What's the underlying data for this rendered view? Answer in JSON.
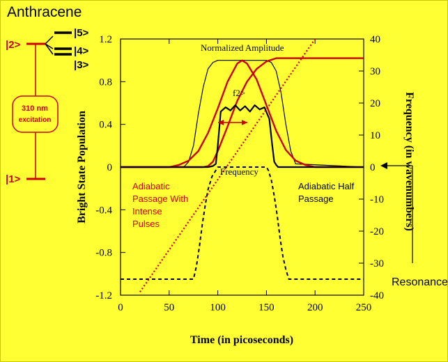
{
  "figure": {
    "title": "Anthracene",
    "levels": {
      "l5": "|5>",
      "l4": "|4>",
      "l3": "|3>",
      "l2": "|2>",
      "l1": "|1>"
    },
    "excitation": [
      "310 nm",
      "excitation"
    ],
    "resonance_label": "Resonance"
  },
  "chart_data": {
    "type": "line",
    "xlabel": "Time (in picoseconds)",
    "ylabel": "Bright State Population",
    "y2label": "Frequency (in wavenumbers)",
    "xlim": [
      0,
      250
    ],
    "ylim": [
      -1.2,
      1.2
    ],
    "y2lim": [
      -40,
      40
    ],
    "xticks": [
      "0",
      "50",
      "100",
      "150",
      "200",
      "250"
    ],
    "yticks": [
      "-1.2",
      "-0.8",
      "-0.4",
      "0",
      "0.4",
      "0.8",
      "1.2"
    ],
    "y2ticks": [
      "-40",
      "-30",
      "-20",
      "-10",
      "0",
      "10",
      "20",
      "30",
      "40"
    ],
    "annotations": {
      "normalized_amplitude": "Normalized Amplitude",
      "frequency": "Frequency",
      "f2": "f2>",
      "adiabatic_intense": [
        "Adiabatic",
        "Passage With",
        "Intense",
        "Pulses"
      ],
      "adiabatic_half": [
        "Adiabatic Half",
        "Passage"
      ]
    },
    "colors": {
      "black": "#000000",
      "red": "#cc0000",
      "background": "#ffff33"
    },
    "series": [
      {
        "style": "black-thin",
        "axis": "left",
        "x": [
          0,
          65,
          70,
          75,
          80,
          85,
          90,
          95,
          100,
          150,
          155,
          160,
          165,
          170,
          175,
          180,
          250
        ],
        "y": [
          0,
          0,
          0.05,
          0.2,
          0.5,
          0.75,
          0.92,
          0.98,
          1.0,
          1.0,
          0.98,
          0.9,
          0.7,
          0.4,
          0.15,
          0.03,
          0
        ]
      },
      {
        "style": "red-solid",
        "axis": "left",
        "x": [
          0,
          50,
          60,
          70,
          80,
          90,
          100,
          110,
          120,
          125,
          130,
          140,
          150,
          160,
          170,
          180,
          190,
          200,
          250
        ],
        "y": [
          0,
          0,
          0.02,
          0.06,
          0.15,
          0.32,
          0.55,
          0.8,
          0.97,
          1.0,
          0.97,
          0.82,
          0.58,
          0.34,
          0.16,
          0.06,
          0.02,
          0,
          0
        ]
      },
      {
        "style": "red-solid",
        "axis": "left",
        "x": [
          0,
          85,
          90,
          95,
          100,
          110,
          120,
          130,
          140,
          150,
          160,
          170,
          180,
          250
        ],
        "y": [
          0,
          0,
          0.01,
          0.05,
          0.15,
          0.38,
          0.62,
          0.8,
          0.92,
          0.99,
          1.02,
          1.02,
          1.02,
          1.02
        ]
      },
      {
        "style": "black-thick",
        "axis": "left",
        "x": [
          0,
          90,
          95,
          98,
          100,
          103,
          108,
          113,
          118,
          123,
          128,
          133,
          138,
          143,
          148,
          153,
          156,
          158,
          160,
          162,
          165,
          250
        ],
        "y": [
          0,
          0,
          0.01,
          0.03,
          0.2,
          0.52,
          0.56,
          0.53,
          0.58,
          0.53,
          0.57,
          0.52,
          0.58,
          0.54,
          0.56,
          0.45,
          0.2,
          0.05,
          0.02,
          0.0,
          0,
          0
        ]
      },
      {
        "style": "black-dashed",
        "axis": "right",
        "x": [
          0,
          75,
          78,
          81,
          84,
          87,
          90,
          94,
          98,
          100,
          150,
          152,
          155,
          158,
          161,
          164,
          167,
          170,
          173,
          250
        ],
        "y": [
          -35,
          -35,
          -31,
          -25,
          -18,
          -12,
          -7,
          -3,
          -1,
          0,
          0,
          -1,
          -4,
          -9,
          -15,
          -22,
          -28,
          -32,
          -35,
          -35
        ]
      },
      {
        "style": "red-dotted",
        "axis": "right",
        "x": [
          20,
          200
        ],
        "y": [
          -39,
          40
        ]
      }
    ]
  }
}
